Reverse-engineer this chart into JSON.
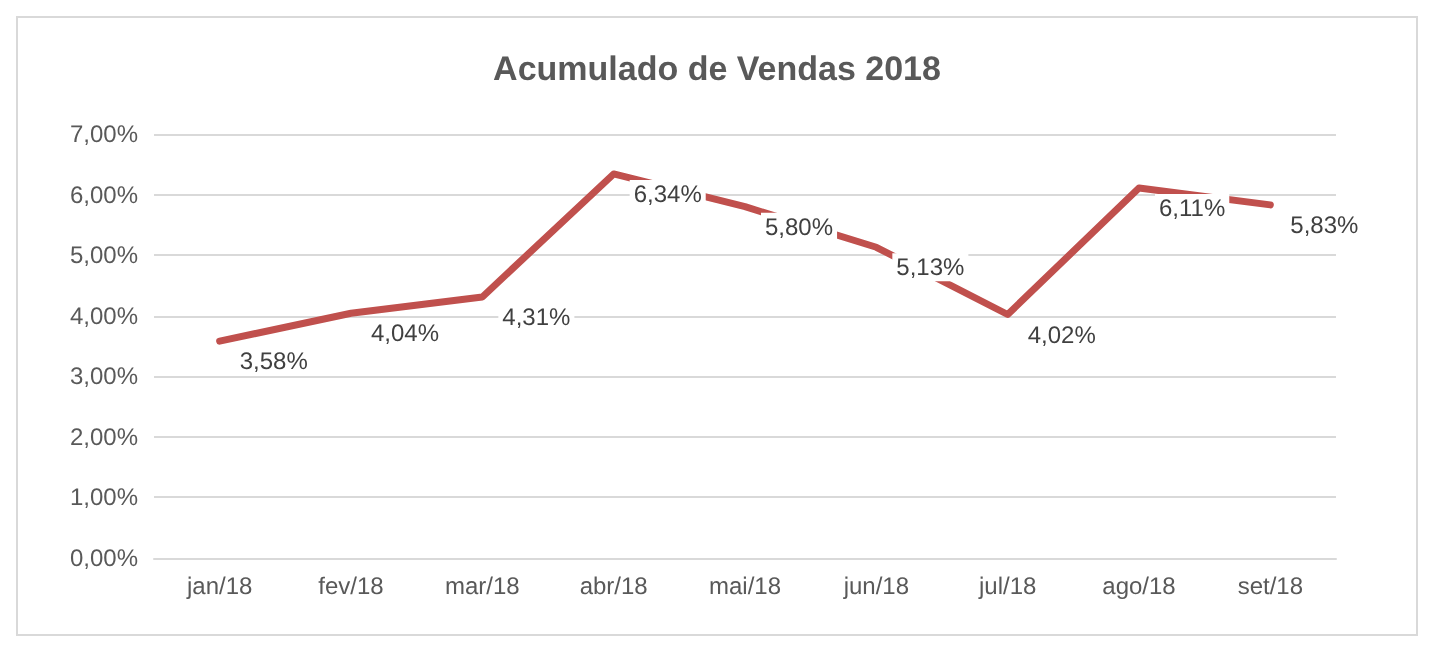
{
  "chart_data": {
    "type": "line",
    "title": "Acumulado de Vendas 2018",
    "categories": [
      "jan/18",
      "fev/18",
      "mar/18",
      "abr/18",
      "mai/18",
      "jun/18",
      "jul/18",
      "ago/18",
      "set/18"
    ],
    "series": [
      {
        "color": "#c0504d",
        "values": [
          3.58,
          4.04,
          4.31,
          6.34,
          5.8,
          5.13,
          4.02,
          6.11,
          5.83
        ],
        "value_labels": [
          "3,58%",
          "4,04%",
          "4,31%",
          "6,34%",
          "5,80%",
          "5,13%",
          "4,02%",
          "6,11%",
          "5,83%"
        ]
      }
    ],
    "ylim": [
      0,
      7
    ],
    "yticks": [
      {
        "value": 0,
        "label": "0,00%"
      },
      {
        "value": 1,
        "label": "1,00%"
      },
      {
        "value": 2,
        "label": "2,00%"
      },
      {
        "value": 3,
        "label": "3,00%"
      },
      {
        "value": 4,
        "label": "4,00%"
      },
      {
        "value": 5,
        "label": "5,00%"
      },
      {
        "value": 6,
        "label": "6,00%"
      },
      {
        "value": 7,
        "label": "7,00%"
      }
    ],
    "grid": "y",
    "marker": "none",
    "line_style": "solid"
  }
}
